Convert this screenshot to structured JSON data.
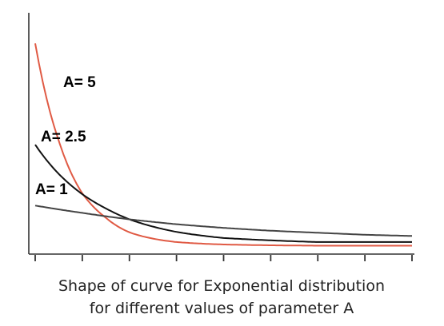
{
  "chart_data": {
    "type": "line",
    "title": "",
    "caption": [
      "Shape of curve for Exponential distribution",
      "for different values of parameter A"
    ],
    "xlabel": "",
    "ylabel": "",
    "x_tick_labels_shown": false,
    "y_tick_labels_shown": false,
    "grid": false,
    "legend": "labels placed on curves",
    "xlim": [
      0,
      8
    ],
    "ylim": [
      0,
      5.4
    ],
    "x_tick_count": 9,
    "series": [
      {
        "name": "A= 5",
        "rate": 5,
        "color": "#e05a44",
        "x": [
          0,
          0.5,
          1,
          1.5,
          2,
          3,
          4,
          6,
          8
        ],
        "values": [
          5.0,
          2.6,
          1.3,
          0.7,
          0.34,
          0.1,
          0.04,
          0.01,
          0.01
        ]
      },
      {
        "name": "A= 2.5",
        "rate": 2.5,
        "color": "#111111",
        "x": [
          0,
          0.5,
          1,
          1.5,
          2,
          3,
          4,
          6,
          8
        ],
        "values": [
          2.5,
          1.78,
          1.28,
          0.93,
          0.66,
          0.35,
          0.2,
          0.1,
          0.1
        ]
      },
      {
        "name": "A= 1",
        "rate": 1,
        "color": "#444444",
        "x": [
          0,
          1,
          2,
          3,
          4,
          5,
          6,
          7,
          8
        ],
        "values": [
          1.0,
          0.82,
          0.66,
          0.54,
          0.45,
          0.38,
          0.33,
          0.28,
          0.25
        ]
      }
    ]
  }
}
